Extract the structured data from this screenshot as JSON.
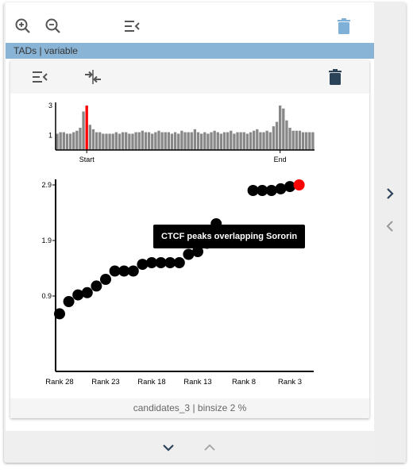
{
  "toolbar": {
    "zoom_in_icon": "zoom-in-icon",
    "zoom_out_icon": "zoom-out-icon",
    "collapse_icon": "menu-collapse-icon",
    "delete_icon": "trash-icon"
  },
  "section": {
    "label": "TADs | variable"
  },
  "inner_toolbar": {
    "collapse_icon": "menu-collapse-icon",
    "compress_icon": "compress-arrows-icon",
    "delete_icon": "trash-icon"
  },
  "colors": {
    "section_bar": "#8ab4d6",
    "highlight": "#ff0000",
    "bars": "#888888",
    "dots": "#000000"
  },
  "tooltip": {
    "text": "CTCF peaks overlapping Sororin"
  },
  "caption": "candidates_3 | binsize 2 %",
  "nav": {
    "down_icon": "chevron-down-icon",
    "up_icon": "chevron-up-icon",
    "right_icon": "chevron-right-icon",
    "left_icon": "chevron-left-icon"
  },
  "chart_data": [
    {
      "type": "bar",
      "title": "",
      "ylim": [
        0,
        3
      ],
      "yticks": [
        "1",
        "3"
      ],
      "xticks": [
        "Start",
        "End"
      ],
      "values": [
        1.1,
        1.2,
        1.2,
        1.1,
        1.1,
        1.2,
        1.3,
        1.5,
        2.6,
        3.0,
        1.7,
        1.4,
        1.2,
        1.2,
        1.1,
        1.1,
        1.1,
        1.1,
        1.2,
        1.1,
        1.2,
        1.2,
        1.1,
        1.1,
        1.2,
        1.2,
        1.3,
        1.2,
        1.2,
        1.1,
        1.2,
        1.3,
        1.2,
        1.2,
        1.2,
        1.1,
        1.2,
        1.1,
        1.3,
        1.2,
        1.2,
        1.2,
        1.4,
        1.2,
        1.1,
        1.2,
        1.1,
        1.2,
        1.3,
        1.2,
        1.1,
        1.2,
        1.2,
        1.3,
        1.1,
        1.2,
        1.2,
        1.2,
        1.1,
        1.2,
        1.3,
        1.4,
        1.2,
        1.2,
        1.3,
        1.2,
        1.6,
        1.9,
        3.0,
        2.8,
        2.0,
        1.5,
        1.3,
        1.3,
        1.3,
        1.2,
        1.2,
        1.2,
        1.2
      ],
      "highlight_index": 9,
      "start_index": 9,
      "end_index": 68
    },
    {
      "type": "scatter",
      "title": "",
      "xlabel": "",
      "ylabel": "",
      "yticks": [
        "0.9",
        "1.9",
        "2.9"
      ],
      "ytick_values": [
        0.9,
        1.9,
        2.9
      ],
      "xticks": [
        "Rank 28",
        "Rank 23",
        "Rank 18",
        "Rank 13",
        "Rank 8",
        "Rank 3"
      ],
      "xtick_ranks": [
        28,
        23,
        18,
        13,
        8,
        3
      ],
      "ylim": [
        0,
        2.9
      ],
      "points": [
        {
          "rank": 28,
          "y": 0.58
        },
        {
          "rank": 27,
          "y": 0.8
        },
        {
          "rank": 26,
          "y": 0.92
        },
        {
          "rank": 25,
          "y": 0.96
        },
        {
          "rank": 24,
          "y": 1.08
        },
        {
          "rank": 23,
          "y": 1.2
        },
        {
          "rank": 22,
          "y": 1.35
        },
        {
          "rank": 21,
          "y": 1.35
        },
        {
          "rank": 20,
          "y": 1.35
        },
        {
          "rank": 19,
          "y": 1.47
        },
        {
          "rank": 18,
          "y": 1.5
        },
        {
          "rank": 17,
          "y": 1.5
        },
        {
          "rank": 16,
          "y": 1.5
        },
        {
          "rank": 15,
          "y": 1.5
        },
        {
          "rank": 14,
          "y": 1.65
        },
        {
          "rank": 13,
          "y": 1.7
        },
        {
          "rank": 12,
          "y": 1.85
        },
        {
          "rank": 11,
          "y": 2.2
        },
        {
          "rank": 7,
          "y": 2.8
        },
        {
          "rank": 6,
          "y": 2.8
        },
        {
          "rank": 5,
          "y": 2.8
        },
        {
          "rank": 4,
          "y": 2.83
        },
        {
          "rank": 3,
          "y": 2.87
        },
        {
          "rank": 2,
          "y": 2.9,
          "highlight": true
        }
      ]
    }
  ]
}
